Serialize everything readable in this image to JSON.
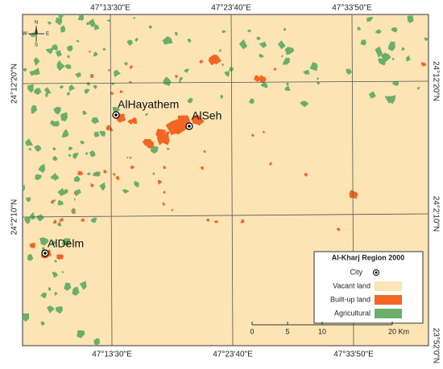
{
  "map": {
    "top_labels": [
      "47°13'30\"E",
      "47°23'40\"E",
      "47°33'50\"E"
    ],
    "bottom_labels": [
      "47°13'30\"E",
      "47°23'40\"E",
      "47°33'50\"E"
    ],
    "corner_label": "23°52'0\"N",
    "left_labels": [
      "24°12'20\"N",
      "24°2'10\"N"
    ],
    "right_labels": [
      "24°12'20\"N",
      "24°2'10\"N"
    ],
    "compass": [
      "N",
      "S",
      "E",
      "W"
    ],
    "cities": [
      {
        "name": "AlHayathem"
      },
      {
        "name": "AlSeh"
      },
      {
        "name": "AlDelm"
      }
    ],
    "legend": {
      "title": "Al-Kharj Region 2000",
      "items": [
        "City",
        "Vacant land",
        "Built-up land",
        "Agricultural"
      ]
    },
    "scale": [
      "0",
      "5",
      "10",
      "20 Km"
    ]
  }
}
